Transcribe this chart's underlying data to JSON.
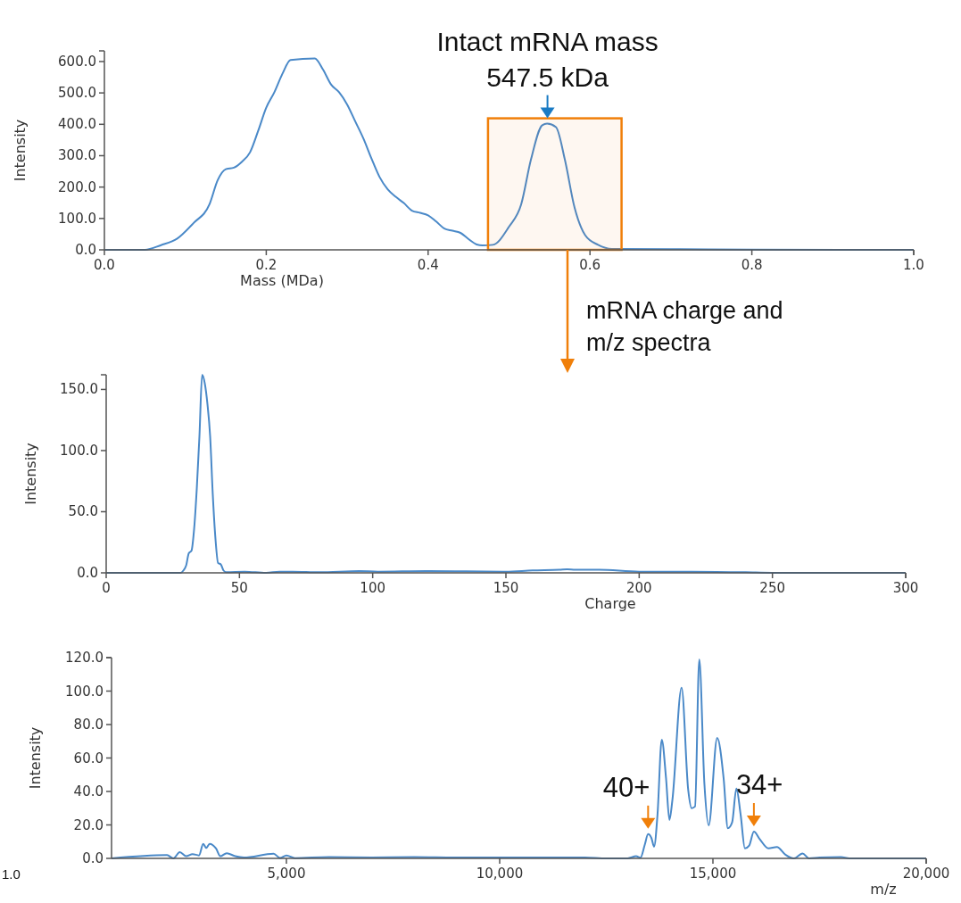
{
  "chart_data": [
    {
      "type": "line",
      "xlabel": "Mass (MDa)",
      "ylabel": "Intensity",
      "xlim": [
        0,
        1
      ],
      "ylim": [
        0,
        634
      ],
      "xticks": [
        {
          "value": 0,
          "label": "0.0"
        },
        {
          "value": 0.2,
          "label": "0.2"
        },
        {
          "value": 0.4,
          "label": "0.4"
        },
        {
          "value": 0.6,
          "label": "0.6"
        },
        {
          "value": 0.8,
          "label": "0.8"
        },
        {
          "value": 1,
          "label": "1.0"
        }
      ],
      "yticks": [
        {
          "value": 0,
          "label": "0.0"
        },
        {
          "value": 100,
          "label": "100.0"
        },
        {
          "value": 200,
          "label": "200.0"
        },
        {
          "value": 300,
          "label": "300.0"
        },
        {
          "value": 400,
          "label": "400.0"
        },
        {
          "value": 500,
          "label": "500.0"
        },
        {
          "value": 600,
          "label": "600.0"
        }
      ],
      "series": [
        {
          "color": "#4a89c8",
          "x": [
            0,
            0.05,
            0.07,
            0.09,
            0.11,
            0.13,
            0.14,
            0.15,
            0.16,
            0.17,
            0.18,
            0.19,
            0.2,
            0.21,
            0.22,
            0.23,
            0.24,
            0.2545,
            0.26,
            0.27,
            0.28,
            0.29,
            0.3,
            0.31,
            0.32,
            0.33,
            0.34,
            0.35,
            0.36,
            0.37,
            0.38,
            0.39,
            0.4,
            0.41,
            0.42,
            0.43,
            0.44,
            0.45,
            0.46,
            0.467,
            0.48,
            0.5,
            0.515,
            0.527,
            0.541,
            0.547,
            0.558,
            0.569,
            0.581,
            0.594,
            0.61,
            0.627,
            0.7,
            0.8,
            1
          ],
          "values": [
            0,
            0,
            15,
            36,
            85,
            146,
            222,
            257,
            262,
            281,
            311,
            379,
            453,
            502,
            561,
            605,
            null,
            null,
            610,
            575,
            527,
            502,
            463,
            409,
            355,
            291,
            232,
            193,
            169,
            149,
            125,
            118,
            110,
            90,
            68,
            61,
            54,
            34,
            17,
            14,
            16,
            74,
            145,
            287,
            397,
            402,
            391,
            287,
            134,
            47,
            16,
            3,
            2,
            1,
            0
          ]
        }
      ],
      "bands": [
        {
          "axis": "x",
          "from": 0.474,
          "to": 0.639,
          "color": "#f07f09"
        }
      ],
      "annotations": [
        {
          "text": "Intact mRNA mass\n547.5 kDa",
          "x": 0.5475,
          "y": 402
        },
        "mRNA charge and\nm/z spectra"
      ]
    },
    {
      "type": "line",
      "xlabel": "Charge",
      "ylabel": "Intensity",
      "xlim": [
        0,
        300
      ],
      "ylim": [
        0,
        162
      ],
      "xticks": [
        0,
        50,
        100,
        150,
        200,
        250,
        300
      ],
      "yticks": [
        {
          "value": 0,
          "label": "0.0"
        },
        {
          "value": 50,
          "label": "50.0"
        },
        {
          "value": 100,
          "label": "100.0"
        },
        {
          "value": 150,
          "label": "150.0"
        }
      ],
      "series": [
        {
          "color": "#4a89c8",
          "x": [
            0,
            28,
            29,
            30,
            31,
            32,
            33,
            34,
            35,
            36,
            37,
            38,
            39,
            40,
            41,
            42,
            43,
            44,
            45,
            52,
            60,
            65,
            70,
            80,
            95,
            102,
            120,
            150,
            160,
            170,
            173,
            176,
            185,
            200,
            220,
            240,
            250,
            300
          ],
          "values": [
            0,
            0,
            2,
            6,
            16,
            18,
            36,
            69,
            112,
            162,
            155,
            138,
            112,
            64,
            28,
            8,
            7,
            2,
            0.5,
            1,
            0,
            1,
            1,
            0.5,
            1.5,
            1,
            1.5,
            1,
            2,
            2.5,
            3,
            2.5,
            2.5,
            1,
            1,
            0.5,
            0,
            0
          ]
        }
      ]
    },
    {
      "type": "line",
      "xlabel": "m/z",
      "ylabel": "Intensity",
      "xlim": [
        900,
        20000
      ],
      "ylim": [
        0,
        120
      ],
      "xticks": [
        {
          "value": 5000,
          "label": "5,000"
        },
        {
          "value": 10000,
          "label": "10,000"
        },
        {
          "value": 15000,
          "label": "15,000"
        },
        {
          "value": 20000,
          "label": "20,000"
        }
      ],
      "yticks": [
        {
          "value": 0,
          "label": "0.0"
        },
        {
          "value": 20,
          "label": "20.0"
        },
        {
          "value": 40,
          "label": "40.0"
        },
        {
          "value": 60,
          "label": "60.0"
        },
        {
          "value": 80,
          "label": "80.0"
        },
        {
          "value": 100,
          "label": "100.0"
        },
        {
          "value": 120,
          "label": "120.0"
        }
      ],
      "series": [
        {
          "color": "#4a89c8",
          "x": [
            900,
            2200,
            2350,
            2500,
            2650,
            2800,
            2950,
            3050,
            3120,
            3200,
            3350,
            3450,
            3600,
            3800,
            4000,
            4700,
            4850,
            5000,
            5200,
            6000,
            7000,
            8000,
            9000,
            10500,
            11000,
            12000,
            12500,
            13000,
            13200,
            13300,
            13400,
            13480,
            13560,
            13620,
            13700,
            13800,
            13900,
            13980,
            14050,
            14265,
            14420,
            14500,
            14580,
            14680,
            14800,
            14900,
            15100,
            15250,
            15350,
            15450,
            15550,
            15650,
            15750,
            15850,
            15960,
            16100,
            16300,
            16500,
            16700,
            16900,
            17100,
            17250,
            17500,
            18000,
            18200,
            20000
          ],
          "values": [
            0,
            2,
            0,
            3.7,
            1.3,
            2.6,
            1.8,
            8.7,
            6.3,
            8.7,
            5.9,
            1.3,
            3.1,
            1.3,
            0.5,
            2.8,
            0.3,
            1.8,
            0.2,
            0.8,
            0.6,
            0.8,
            0.5,
            0.6,
            0.5,
            0.6,
            0,
            0,
            1.3,
            0.4,
            8,
            14.5,
            12,
            7,
            26,
            71,
            48,
            23,
            35,
            102,
            41,
            30,
            31,
            119,
            44.5,
            19.7,
            72,
            48,
            18,
            21.5,
            41.8,
            26,
            6,
            7.7,
            16,
            11.4,
            6,
            6.8,
            2.2,
            0,
            3,
            0,
            0.5,
            0.8,
            0,
            0
          ]
        }
      ],
      "annotations": [
        {
          "text": "40+",
          "x": 13480,
          "y": 14.5
        },
        {
          "text": "34+",
          "x": 15960,
          "y": 16
        },
        "1.0"
      ]
    }
  ]
}
